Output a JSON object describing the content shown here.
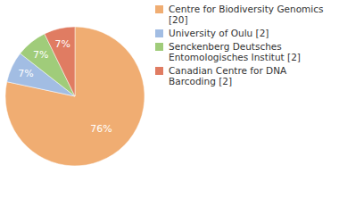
{
  "chart_data": {
    "type": "pie",
    "categories": [
      "Centre for Biodiversity Genomics [20]",
      "University of Oulu [2]",
      "Senckenberg Deutsches Entomologisches Institut [2]",
      "Canadian Centre for DNA Barcoding [2]"
    ],
    "values": [
      76,
      7,
      7,
      7
    ],
    "value_labels": [
      "76%",
      "7%",
      "7%",
      "7%"
    ],
    "colors": [
      "#f0ad72",
      "#a2bde3",
      "#a0cc7a",
      "#e07c62"
    ],
    "data_labels": true,
    "legend": "top-right"
  }
}
